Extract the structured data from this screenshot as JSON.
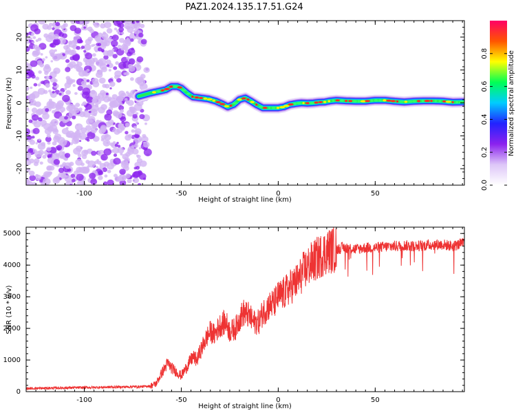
{
  "title": "PAZ1.2024.135.17.51.G24",
  "colors": {
    "snr_line": "#ee3333",
    "spec_noise": "#8b22ee",
    "spec_noise_light": "#d2b4f4",
    "axis": "#000000"
  },
  "chart_data": [
    {
      "type": "heatmap",
      "xlabel": "Height of straight line (km)",
      "ylabel": "Frequency (Hz)",
      "xlim": [
        -130,
        96
      ],
      "ylim": [
        -25,
        25
      ],
      "xticks": [
        -100,
        -50,
        0,
        50
      ],
      "yticks": [
        20,
        10,
        0,
        -10,
        -20
      ],
      "noise_region_x": [
        -130,
        -66
      ],
      "ridge": {
        "x": [
          -72,
          -66,
          -62,
          -58,
          -55,
          -52,
          -50,
          -47,
          -44,
          -40,
          -36,
          -32,
          -29,
          -26,
          -23,
          -20,
          -17,
          -14,
          -11,
          -8,
          -5,
          -2,
          0,
          3,
          6,
          9,
          12,
          15,
          18,
          21,
          24,
          27,
          30,
          35,
          40,
          45,
          50,
          55,
          60,
          65,
          70,
          75,
          80,
          85,
          90,
          96
        ],
        "frequency": [
          2,
          3,
          3.5,
          4,
          5,
          5,
          4.5,
          3,
          1.8,
          1.5,
          1.2,
          0.5,
          -0.3,
          -1.2,
          -0.5,
          1,
          1.5,
          0.5,
          -0.6,
          -1.5,
          -1.5,
          -1.5,
          -1.5,
          -1.2,
          -0.5,
          -0.2,
          0,
          -0.1,
          0,
          0.2,
          0.3,
          0.6,
          0.8,
          0.6,
          0.5,
          0.5,
          0.8,
          0.8,
          0.5,
          0.3,
          0.5,
          0.6,
          0.6,
          0.5,
          0.2,
          0.3
        ]
      },
      "colorbar": {
        "label": "Normalized spectral amplitude",
        "range": [
          0,
          1
        ],
        "ticks": [
          "0.0",
          "0.2",
          "0.4",
          "0.6",
          "0.8"
        ],
        "tick_values": [
          0,
          0.2,
          0.4,
          0.6,
          0.8
        ],
        "colormap": [
          "#ffffff",
          "#ddc6f8",
          "#8b22ee",
          "#2222ff",
          "#00ccff",
          "#00ff55",
          "#ffff00",
          "#ff5500",
          "#ff0066"
        ]
      }
    },
    {
      "type": "line",
      "xlabel": "Height of straight line (km)",
      "ylabel": "SNR (10 * v/v)",
      "xlim": [
        -130,
        96
      ],
      "ylim": [
        0,
        5200
      ],
      "xticks": [
        -100,
        -50,
        0,
        50
      ],
      "yticks": [
        0,
        1000,
        2000,
        3000,
        4000,
        5000
      ],
      "series": [
        {
          "x": [
            -130,
            -120,
            -110,
            -100,
            -90,
            -80,
            -70,
            -66,
            -63,
            -60,
            -57,
            -55,
            -52,
            -50,
            -47,
            -44,
            -42,
            -40,
            -37,
            -35,
            -33,
            -30,
            -27,
            -25,
            -22,
            -20,
            -18,
            -15,
            -13,
            -10,
            -8,
            -5,
            -2,
            0,
            3,
            6,
            10,
            13,
            16,
            20,
            23,
            26,
            30,
            33,
            36,
            40,
            45,
            50,
            55,
            60,
            65,
            70,
            75,
            80,
            85,
            90,
            96
          ],
          "values": [
            100,
            110,
            120,
            130,
            140,
            150,
            160,
            180,
            250,
            600,
            900,
            750,
            600,
            500,
            800,
            1100,
            1000,
            1300,
            1700,
            1900,
            1800,
            2100,
            2200,
            1900,
            2000,
            2300,
            2500,
            2400,
            2200,
            2200,
            2500,
            2700,
            2800,
            3000,
            3100,
            3300,
            3500,
            3800,
            4000,
            4200,
            4350,
            4450,
            4500,
            4550,
            4550,
            4500,
            4550,
            4550,
            4580,
            4600,
            4620,
            4600,
            4620,
            4650,
            4650,
            4600,
            4700
          ]
        }
      ]
    }
  ]
}
